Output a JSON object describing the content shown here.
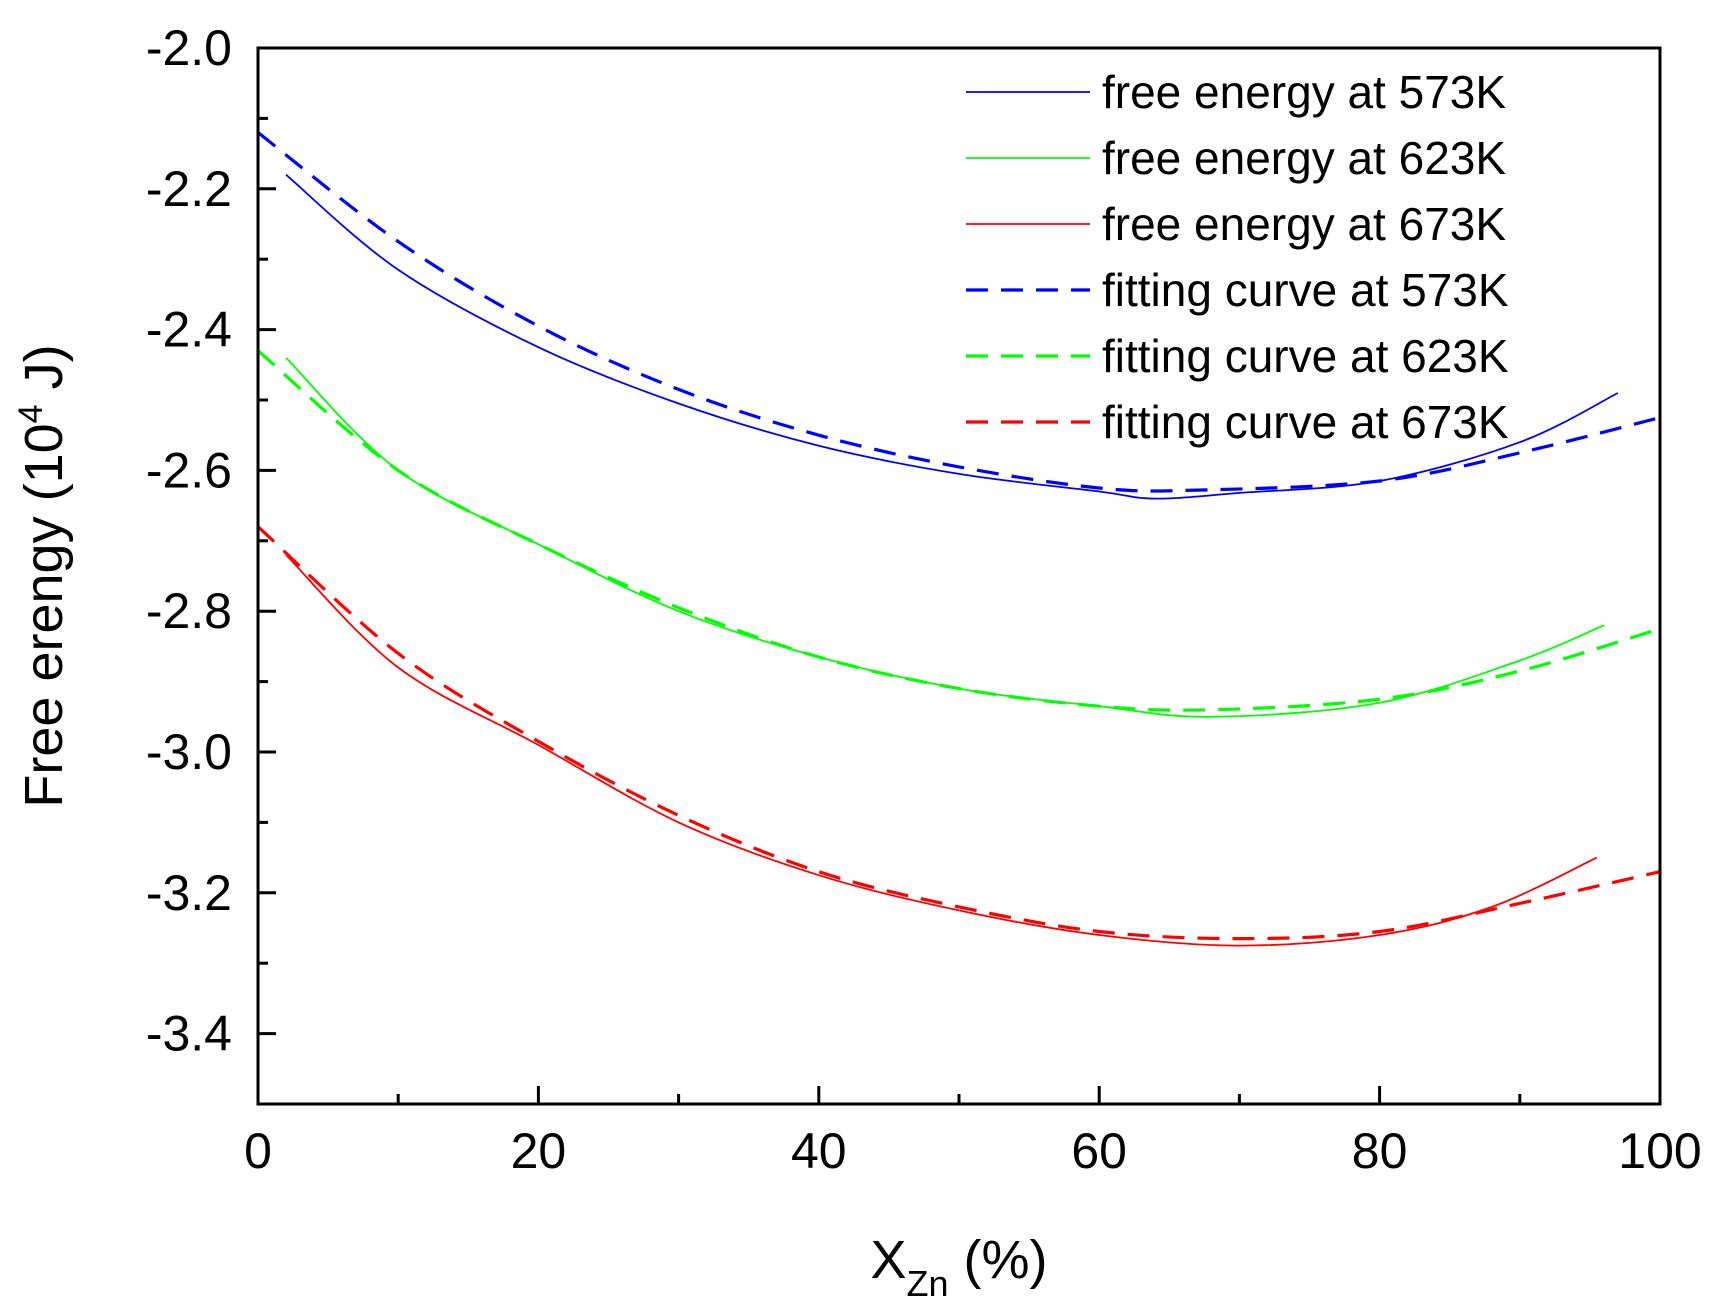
{
  "chart_data": {
    "type": "line",
    "title": "",
    "xlabel": {
      "main": "X",
      "sub": "Zn",
      "unit": " (%)"
    },
    "ylabel": {
      "main": "Free erengy (10",
      "sup": "4",
      "unit": " J)"
    },
    "xlim": [
      0,
      100
    ],
    "ylim": [
      -3.5,
      -2.0
    ],
    "xticks": [
      0,
      20,
      40,
      60,
      80,
      100
    ],
    "xtick_labels": [
      "0",
      "20",
      "40",
      "60",
      "80",
      "100"
    ],
    "xminor": [
      10,
      30,
      50,
      70,
      90
    ],
    "yticks": [
      -2.0,
      -2.2,
      -2.4,
      -2.6,
      -2.8,
      -3.0,
      -3.2,
      -3.4
    ],
    "ytick_labels": [
      "-2.0",
      "-2.2",
      "-2.4",
      "-2.6",
      "-2.8",
      "-3.0",
      "-3.2",
      "-3.4"
    ],
    "yminor": [
      -2.1,
      -2.3,
      -2.5,
      -2.7,
      -2.9,
      -3.1,
      -3.3,
      -3.5
    ],
    "legend_position": "top-right",
    "series": [
      {
        "name": "free energy at 573K",
        "color": "#0000ff",
        "style": "solid",
        "x": [
          2,
          10,
          20,
          30,
          40,
          50,
          60,
          64,
          70,
          80,
          90,
          97
        ],
        "y": [
          -2.18,
          -2.315,
          -2.425,
          -2.505,
          -2.565,
          -2.605,
          -2.63,
          -2.64,
          -2.632,
          -2.615,
          -2.56,
          -2.49
        ]
      },
      {
        "name": "free energy at 623K",
        "color": "#00ff00",
        "style": "solid",
        "x": [
          2,
          10,
          20,
          30,
          40,
          50,
          60,
          68,
          80,
          90,
          96
        ],
        "y": [
          -2.44,
          -2.6,
          -2.705,
          -2.8,
          -2.865,
          -2.91,
          -2.935,
          -2.95,
          -2.93,
          -2.87,
          -2.82
        ]
      },
      {
        "name": "free energy at 673K",
        "color": "#ff0000",
        "style": "solid",
        "x": [
          2,
          10,
          20,
          30,
          40,
          50,
          60,
          70,
          80,
          88,
          95.5
        ],
        "y": [
          -2.72,
          -2.88,
          -2.99,
          -3.1,
          -3.175,
          -3.225,
          -3.26,
          -3.275,
          -3.26,
          -3.22,
          -3.15
        ]
      },
      {
        "name": "fitting curve at 573K",
        "color": "#0000ff",
        "style": "dashed",
        "x": [
          0,
          10,
          20,
          30,
          40,
          50,
          60,
          67,
          80,
          90,
          100
        ],
        "y": [
          -2.12,
          -2.275,
          -2.395,
          -2.485,
          -2.55,
          -2.595,
          -2.625,
          -2.628,
          -2.615,
          -2.575,
          -2.525
        ]
      },
      {
        "name": "fitting curve at 623K",
        "color": "#00ff00",
        "style": "dashed",
        "x": [
          0,
          10,
          20,
          30,
          40,
          50,
          60,
          68,
          80,
          90,
          100
        ],
        "y": [
          -2.43,
          -2.6,
          -2.705,
          -2.795,
          -2.865,
          -2.91,
          -2.935,
          -2.94,
          -2.925,
          -2.885,
          -2.825
        ]
      },
      {
        "name": "fitting curve at 673K",
        "color": "#ff0000",
        "style": "dashed",
        "x": [
          0,
          10,
          20,
          30,
          40,
          50,
          60,
          70,
          80,
          90,
          100
        ],
        "y": [
          -2.68,
          -2.86,
          -2.985,
          -3.09,
          -3.17,
          -3.22,
          -3.255,
          -3.265,
          -3.255,
          -3.215,
          -3.17
        ]
      }
    ]
  }
}
